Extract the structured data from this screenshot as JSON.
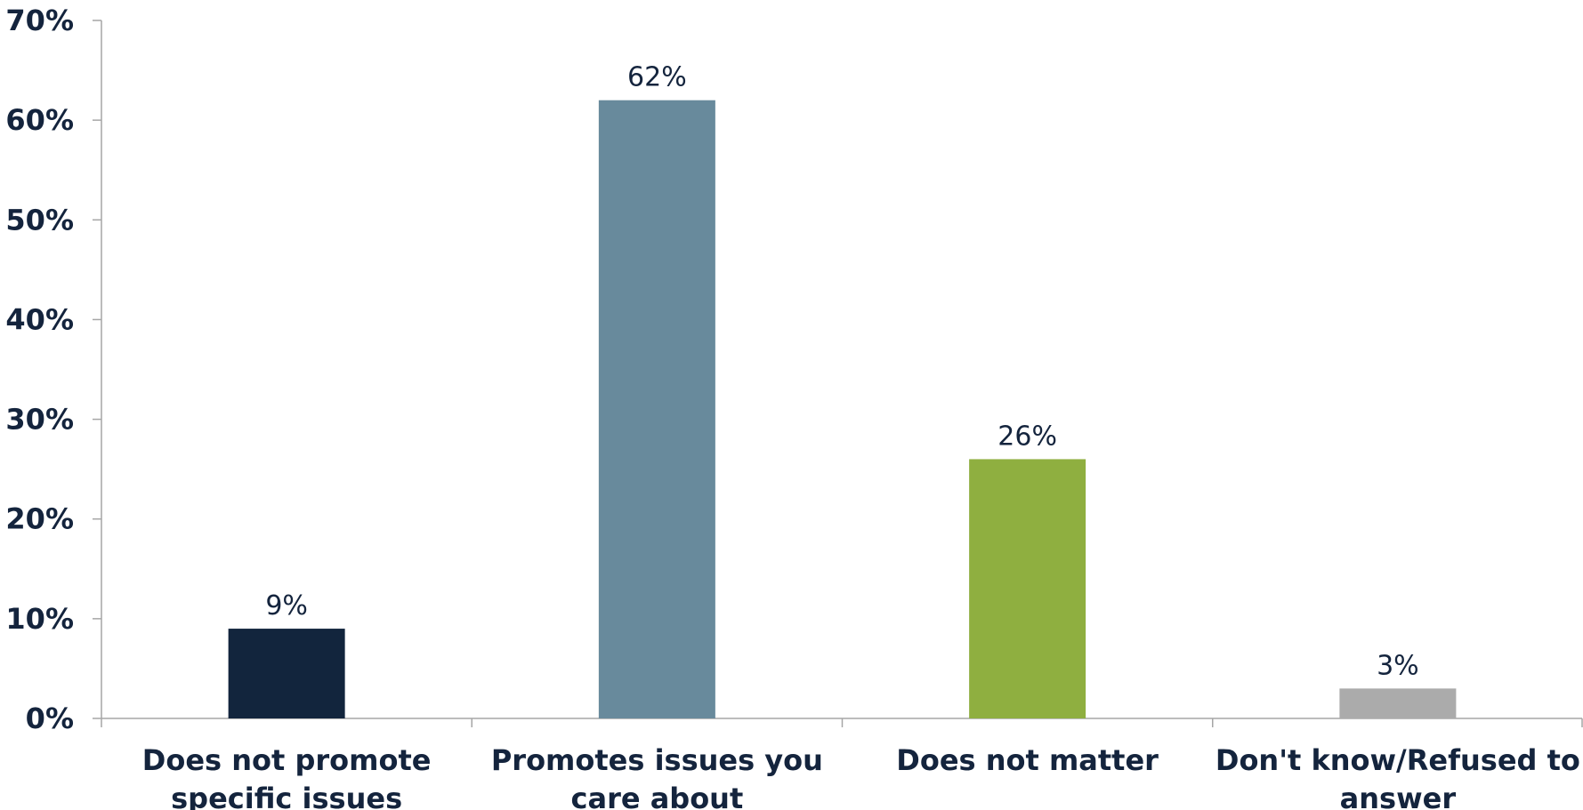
{
  "chart_data": {
    "type": "bar",
    "title": "",
    "xlabel": "",
    "ylabel": "",
    "categories": [
      [
        "Does not promote",
        "specific issues"
      ],
      [
        "Promotes issues you",
        "care about"
      ],
      [
        "Does not matter"
      ],
      [
        "Don't know/Refused to",
        "answer"
      ]
    ],
    "values": [
      9,
      62,
      26,
      3
    ],
    "data_labels": [
      "9%",
      "62%",
      "26%",
      "3%"
    ],
    "bar_colors": [
      "#12253d",
      "#688a9c",
      "#8faf40",
      "#ababab"
    ],
    "ylim": [
      0,
      70
    ],
    "yticks": [
      0,
      10,
      20,
      30,
      40,
      50,
      60,
      70
    ],
    "ytick_labels": [
      "0%",
      "10%",
      "20%",
      "30%",
      "40%",
      "50%",
      "60%",
      "70%"
    ],
    "grid": false,
    "legend": "none",
    "text_color": "#14243d",
    "axis_color": "#a6a6a6"
  }
}
